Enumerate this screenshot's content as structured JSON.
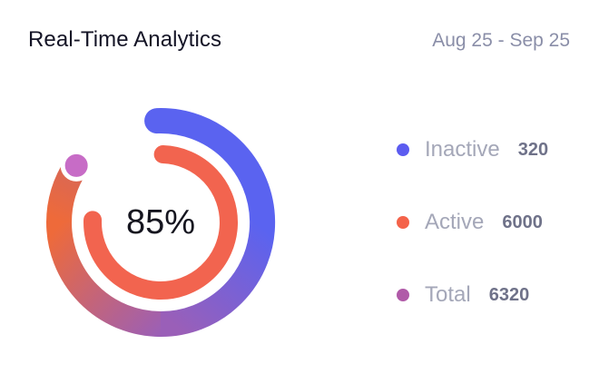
{
  "header": {
    "title": "Real-Time Analytics",
    "date_range": "Aug 25 - Sep 25"
  },
  "donut": {
    "center_label": "85%",
    "outer_progress": 0.85,
    "inner_progress": 0.75,
    "colors": {
      "outer_start": "#5a63f0",
      "outer_mid": "#9a5fb8",
      "outer_end": "#ee6a3a",
      "inner": "#f2644f",
      "marker": "#c76cc6"
    }
  },
  "legend": {
    "items": [
      {
        "label": "Inactive",
        "value": "320",
        "color": "#5c5cf0"
      },
      {
        "label": "Active",
        "value": "6000",
        "color": "#f4634a"
      },
      {
        "label": "Total",
        "value": "6320",
        "color": "#b05aa8"
      }
    ]
  }
}
